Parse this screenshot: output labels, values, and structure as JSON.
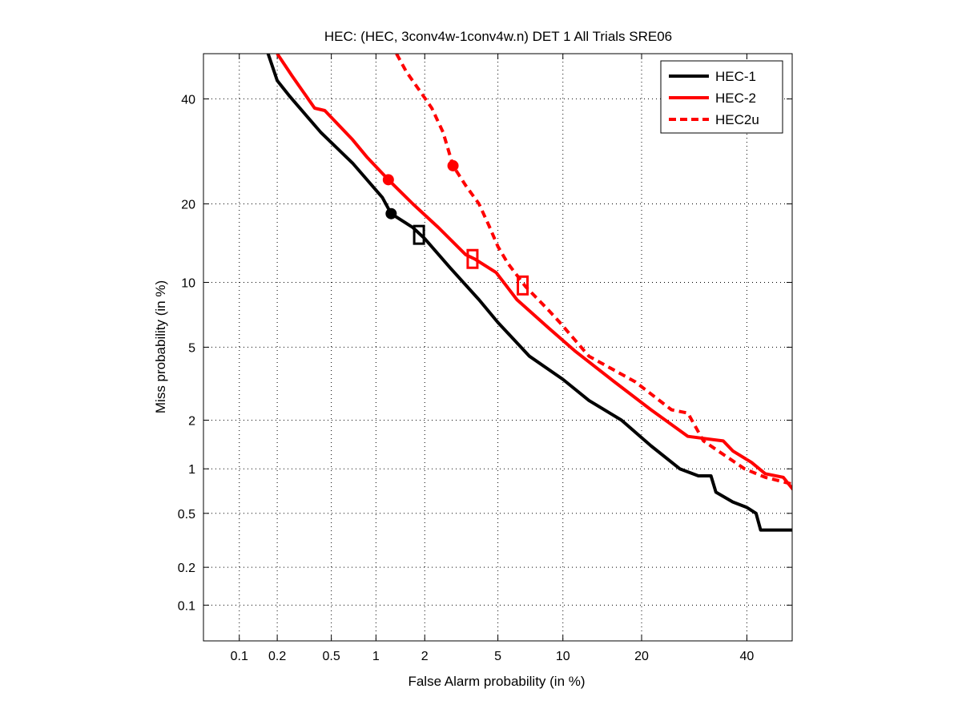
{
  "chart_data": {
    "type": "line",
    "title": "HEC: (HEC, 3conv4w-1conv4w.n) DET 1 All Trials SRE06",
    "xlabel": "False Alarm probability (in %)",
    "ylabel": "Miss probability (in %)",
    "scale": "normal-deviate (probit)",
    "xlim": [
      0.05,
      50
    ],
    "ylim": [
      0.05,
      50
    ],
    "grid": true,
    "legend_position": "top-right",
    "xticks": [
      0.1,
      0.2,
      0.5,
      1,
      2,
      5,
      10,
      20,
      40
    ],
    "xtick_labels": [
      "0.1",
      "0.2",
      "0.5",
      "1",
      "2",
      "5",
      "10",
      "20",
      "40"
    ],
    "yticks": [
      0.1,
      0.2,
      0.5,
      1,
      2,
      5,
      10,
      20,
      40
    ],
    "ytick_labels": [
      "0.1",
      "0.2",
      "0.5",
      "1",
      "2",
      "5",
      "10",
      "20",
      "40"
    ],
    "series": [
      {
        "name": "HEC-1",
        "color": "#000000",
        "style": "solid",
        "points": [
          [
            0.17,
            50
          ],
          [
            0.2,
            44
          ],
          [
            0.25,
            40.5
          ],
          [
            0.42,
            33
          ],
          [
            0.7,
            27
          ],
          [
            1.1,
            21
          ],
          [
            1.25,
            18.5
          ],
          [
            1.7,
            16.5
          ],
          [
            2,
            15
          ],
          [
            2.8,
            11.5
          ],
          [
            4,
            8.4
          ],
          [
            5,
            6.6
          ],
          [
            7.1,
            4.5
          ],
          [
            10,
            3.4
          ],
          [
            12.8,
            2.6
          ],
          [
            17,
            2.0
          ],
          [
            21.5,
            1.4
          ],
          [
            26.5,
            1.0
          ],
          [
            30,
            0.9
          ],
          [
            32.5,
            0.9
          ],
          [
            33.5,
            0.7
          ],
          [
            37,
            0.6
          ],
          [
            40,
            0.55
          ],
          [
            42,
            0.5
          ],
          [
            43,
            0.38
          ],
          [
            51,
            0.38
          ]
        ],
        "markers": {
          "circle": [
            1.25,
            18.5
          ],
          "square": [
            1.85,
            15.5
          ]
        }
      },
      {
        "name": "HEC-2",
        "color": "#ff0000",
        "style": "solid",
        "points": [
          [
            0.2,
            50
          ],
          [
            0.26,
            45
          ],
          [
            0.38,
            38
          ],
          [
            0.45,
            37.5
          ],
          [
            0.7,
            31.5
          ],
          [
            0.88,
            28
          ],
          [
            1.2,
            24
          ],
          [
            1.7,
            20
          ],
          [
            2.4,
            16.5
          ],
          [
            3.4,
            13
          ],
          [
            3.8,
            12.5
          ],
          [
            4.9,
            11
          ],
          [
            6.2,
            8.4
          ],
          [
            8.7,
            6.2
          ],
          [
            11.2,
            4.8
          ],
          [
            16,
            3.3
          ],
          [
            21.5,
            2.3
          ],
          [
            28,
            1.6
          ],
          [
            35,
            1.5
          ],
          [
            37,
            1.3
          ],
          [
            41,
            1.1
          ],
          [
            44,
            0.93
          ],
          [
            48,
            0.88
          ],
          [
            51,
            0.68
          ]
        ],
        "markers": {
          "circle": [
            1.2,
            24
          ],
          "square": [
            3.7,
            12.5
          ]
        }
      },
      {
        "name": "HEC2u",
        "color": "#ff0000",
        "style": "dashed",
        "points": [
          [
            1.35,
            50
          ],
          [
            1.55,
            46
          ],
          [
            1.85,
            42
          ],
          [
            2.2,
            38
          ],
          [
            2.55,
            33
          ],
          [
            2.9,
            26.5
          ],
          [
            3.4,
            23
          ],
          [
            4.0,
            20
          ],
          [
            4.5,
            16.8
          ],
          [
            5,
            14
          ],
          [
            5.6,
            12
          ],
          [
            6.8,
            9.6
          ],
          [
            8.7,
            7.5
          ],
          [
            9.7,
            6.6
          ],
          [
            12.8,
            4.5
          ],
          [
            19,
            3.3
          ],
          [
            25,
            2.3
          ],
          [
            28,
            2.2
          ],
          [
            31,
            1.5
          ],
          [
            39.5,
            1.0
          ],
          [
            44,
            0.88
          ],
          [
            51,
            0.78
          ]
        ],
        "markers": {
          "circle": [
            2.9,
            26.5
          ],
          "square": [
            6.6,
            9.7
          ]
        }
      }
    ]
  }
}
